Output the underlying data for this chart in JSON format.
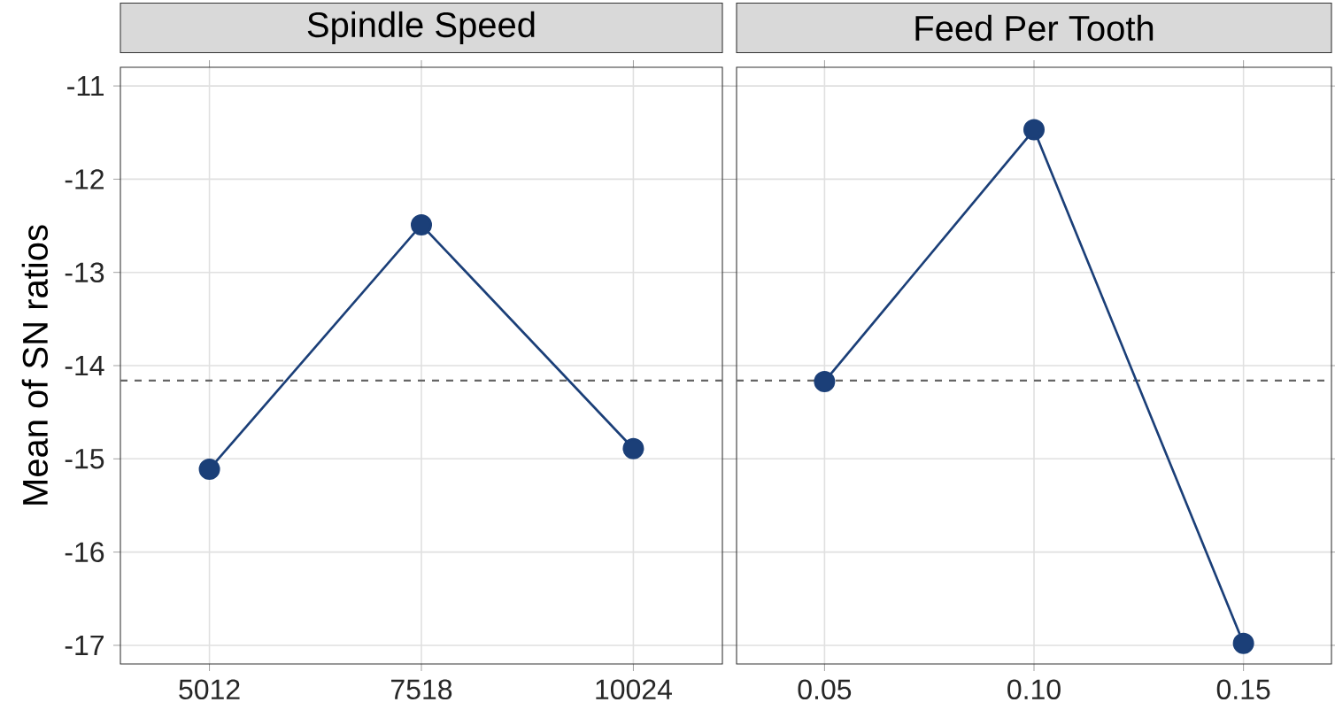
{
  "chart_data": [
    {
      "type": "line",
      "title": "Spindle Speed",
      "ylabel": "Mean of SN ratios",
      "categories": [
        "5012",
        "7518",
        "10024"
      ],
      "series": [
        {
          "color": "#1b3f78",
          "values": [
            -15.11,
            -12.49,
            -14.89
          ]
        }
      ],
      "ylim": [
        -17.2,
        -10.8
      ],
      "yticks": [
        -17,
        -16,
        -15,
        -14,
        -13,
        -12,
        -11
      ],
      "grid": true,
      "marker": "circle",
      "line_style": "solid",
      "ref_lines": [
        {
          "axis": "y",
          "value": -14.16,
          "color": "#666666",
          "line_style": "dashed"
        }
      ]
    },
    {
      "type": "line",
      "title": "Feed Per Tooth",
      "categories": [
        "0.05",
        "0.10",
        "0.15"
      ],
      "series": [
        {
          "color": "#1b3f78",
          "values": [
            -14.17,
            -11.47,
            -16.98
          ]
        }
      ],
      "ylim": [
        -17.2,
        -10.8
      ],
      "yticks": [
        -17,
        -16,
        -15,
        -14,
        -13,
        -12,
        -11
      ],
      "grid": true,
      "marker": "circle",
      "line_style": "solid",
      "tick_labels": "x",
      "ref_lines": [
        {
          "axis": "y",
          "value": -14.16,
          "color": "#666666",
          "line_style": "dashed"
        }
      ]
    }
  ]
}
